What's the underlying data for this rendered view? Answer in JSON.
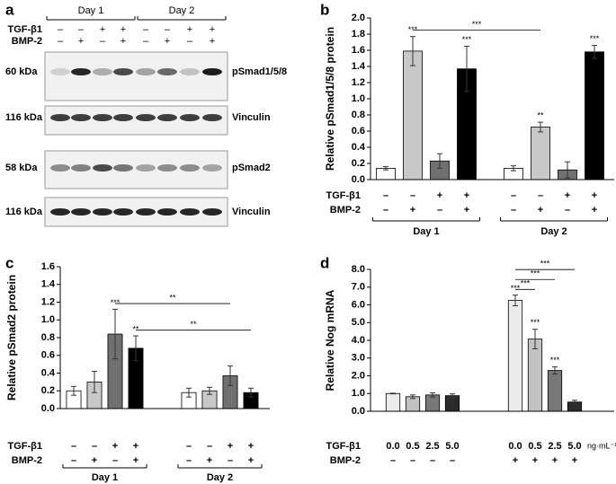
{
  "blot": {
    "letter": "a",
    "days": [
      "Day 1",
      "Day 2"
    ],
    "row_labels": [
      "TGF-β1",
      "BMP-2"
    ],
    "rows": [
      [
        "–",
        "–",
        "+",
        "+",
        "–",
        "–",
        "+",
        "+"
      ],
      [
        "–",
        "+",
        "–",
        "+",
        "–",
        "+",
        "–",
        "+"
      ]
    ],
    "panels": [
      {
        "size": "60 kDa",
        "protein": "pSmad1/5/8"
      },
      {
        "size": "116 kDa",
        "protein": "Vinculin"
      },
      {
        "size": "58 kDa",
        "protein": "pSmad2"
      },
      {
        "size": "116 kDa",
        "protein": "Vinculin"
      }
    ]
  },
  "chart_data": [
    {
      "type": "bar",
      "letter": "b",
      "y_label": "Relative pSmad1/5/8 protein",
      "ylim": [
        0,
        2
      ],
      "yticks": [
        {
          "value": 0,
          "label": "0.0"
        },
        {
          "value": 0.2,
          "label": "0.2"
        },
        {
          "value": 0.4,
          "label": "0.4"
        },
        {
          "value": 0.6,
          "label": "0.6"
        },
        {
          "value": 0.8,
          "label": "0.8"
        },
        {
          "value": 1,
          "label": "1.0"
        },
        {
          "value": 1.2,
          "label": "1.2"
        },
        {
          "value": 1.4,
          "label": "1.4"
        },
        {
          "value": 1.6,
          "label": "1.6"
        },
        {
          "value": 1.8,
          "label": "1.8"
        },
        {
          "value": 2,
          "label": "2.0"
        }
      ],
      "values": [
        0.14,
        1.59,
        0.23,
        1.37,
        0.14,
        0.65,
        0.12,
        1.58
      ],
      "errors": [
        0.02,
        0.18,
        0.09,
        0.28,
        0.03,
        0.06,
        0.1,
        0.08
      ],
      "colors": [
        "#ffffff",
        "#c8c8c8",
        "#707070",
        "#000000",
        "#ffffff",
        "#c8c8c8",
        "#707070",
        "#000000"
      ],
      "stars": [
        null,
        "***",
        null,
        "***",
        null,
        "**",
        null,
        "***"
      ],
      "row_labels": [
        "TGF-β1",
        "BMP-2"
      ],
      "rows": [
        [
          "–",
          "–",
          "+",
          "+",
          "–",
          "–",
          "+",
          "+"
        ],
        [
          "–",
          "+",
          "–",
          "+",
          "–",
          "+",
          "–",
          "+"
        ]
      ],
      "groups": [
        "Day 1",
        "Day 2"
      ],
      "brackets": [
        {
          "from": 1,
          "to": 5,
          "label": "***"
        }
      ]
    },
    {
      "type": "bar",
      "letter": "c",
      "y_label": "Relative pSmad2 protein",
      "ylim": [
        0,
        1.6
      ],
      "yticks": [
        {
          "value": 0,
          "label": "0.0"
        },
        {
          "value": 0.2,
          "label": "0.2"
        },
        {
          "value": 0.4,
          "label": "0.4"
        },
        {
          "value": 0.6,
          "label": "0.6"
        },
        {
          "value": 0.8,
          "label": "0.8"
        },
        {
          "value": 1,
          "label": "1.0"
        },
        {
          "value": 1.2,
          "label": "1.2"
        },
        {
          "value": 1.4,
          "label": "1.4"
        },
        {
          "value": 1.6,
          "label": "1.6"
        }
      ],
      "values": [
        0.2,
        0.3,
        0.84,
        0.68,
        0.18,
        0.2,
        0.37,
        0.18
      ],
      "errors": [
        0.05,
        0.12,
        0.28,
        0.14,
        0.05,
        0.04,
        0.11,
        0.05
      ],
      "colors": [
        "#ffffff",
        "#c8c8c8",
        "#707070",
        "#000000",
        "#ffffff",
        "#c8c8c8",
        "#707070",
        "#000000"
      ],
      "stars": [
        null,
        null,
        "***",
        "**",
        null,
        null,
        null,
        null
      ],
      "row_labels": [
        "TGF-β1",
        "BMP-2"
      ],
      "rows": [
        [
          "–",
          "–",
          "+",
          "+",
          "–",
          "–",
          "+",
          "+"
        ],
        [
          "–",
          "+",
          "–",
          "+",
          "–",
          "+",
          "–",
          "+"
        ]
      ],
      "groups": [
        "Day 1",
        "Day 2"
      ],
      "brackets": [
        {
          "from": 2,
          "to": 6,
          "label": "**"
        },
        {
          "from": 3,
          "to": 7,
          "label": "**"
        }
      ]
    },
    {
      "type": "bar",
      "letter": "d",
      "y_label": "Relative Nog mRNA",
      "ylim": [
        0,
        8
      ],
      "yticks": [
        {
          "value": 0,
          "label": "0.0"
        },
        {
          "value": 1,
          "label": "1.0"
        },
        {
          "value": 2,
          "label": "2.0"
        },
        {
          "value": 3,
          "label": "3.0"
        },
        {
          "value": 4,
          "label": "4.0"
        },
        {
          "value": 5,
          "label": "5.0"
        },
        {
          "value": 6,
          "label": "6.0"
        },
        {
          "value": 7,
          "label": "7.0"
        },
        {
          "value": 8,
          "label": "8.0"
        }
      ],
      "values": [
        1.0,
        0.82,
        0.92,
        0.88,
        6.25,
        4.07,
        2.3,
        0.52
      ],
      "errors": [
        0.02,
        0.1,
        0.12,
        0.1,
        0.3,
        0.55,
        0.2,
        0.1
      ],
      "colors": [
        "#ececec",
        "#c2c2c2",
        "#787878",
        "#2b2b2b",
        "#ececec",
        "#c2c2c2",
        "#787878",
        "#2b2b2b"
      ],
      "stars": [
        null,
        null,
        null,
        null,
        "***",
        "***",
        "***",
        null
      ],
      "row_labels": [
        "TGF-β1",
        "BMP-2"
      ],
      "rows": [
        [
          "0.0",
          "0.5",
          "2.5",
          "5.0",
          "0.0",
          "0.5",
          "2.5",
          "5.0"
        ],
        [
          "–",
          "–",
          "–",
          "–",
          "+",
          "+",
          "+",
          "+"
        ]
      ],
      "unit": "ng·mL⁻¹",
      "brackets": [
        {
          "from": 4,
          "to": 5,
          "label": "***"
        },
        {
          "from": 4,
          "to": 6,
          "label": "***"
        },
        {
          "from": 4,
          "to": 7,
          "label": "***"
        }
      ]
    }
  ]
}
